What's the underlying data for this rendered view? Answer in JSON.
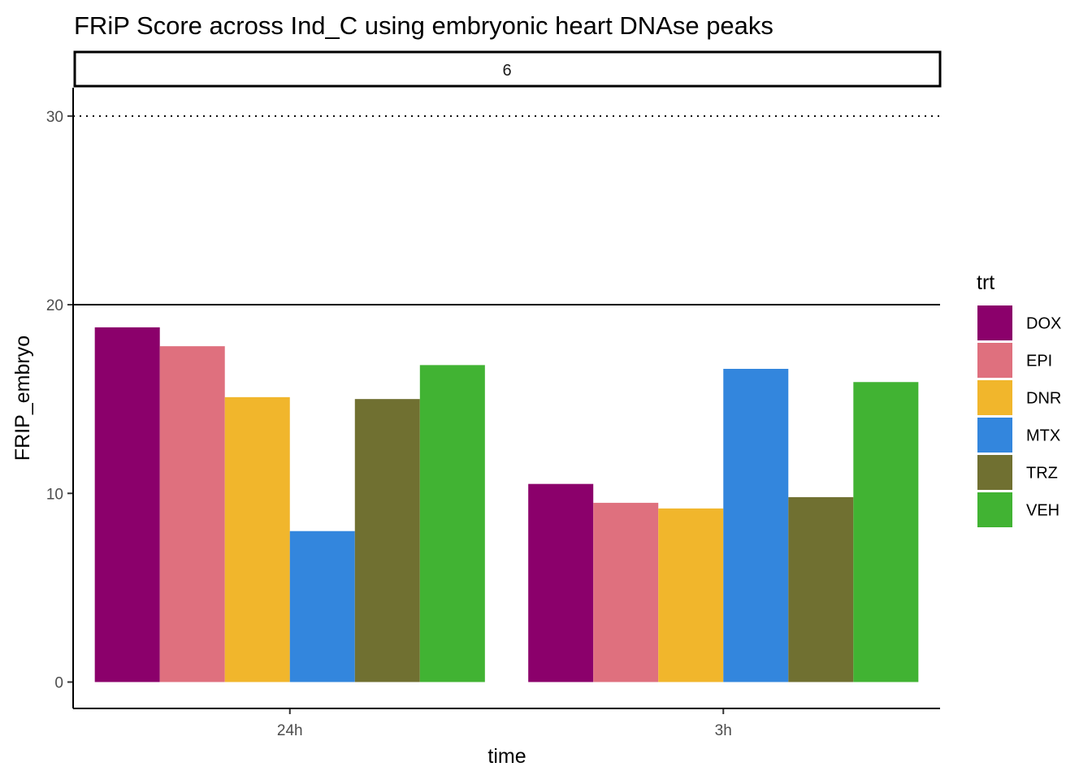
{
  "chart_data": {
    "type": "bar",
    "title": "FRiP Score across Ind_C using embryonic heart DNAse peaks",
    "facet_label": "6",
    "xlabel": "time",
    "ylabel": "FRIP_embryo",
    "categories": [
      "24h",
      "3h"
    ],
    "ylim": [
      -1.4,
      31.5
    ],
    "yticks": [
      0,
      10,
      20,
      30
    ],
    "grid": false,
    "legend": {
      "title": "trt",
      "position": "right"
    },
    "reference_lines": [
      {
        "y": 20,
        "style": "solid"
      },
      {
        "y": 30,
        "style": "dotted"
      }
    ],
    "series": [
      {
        "name": "DOX",
        "color": "#8B006B",
        "values": [
          18.8,
          10.5
        ]
      },
      {
        "name": "EPI",
        "color": "#DF707E",
        "values": [
          17.8,
          9.5
        ]
      },
      {
        "name": "DNR",
        "color": "#F1B62C",
        "values": [
          15.1,
          9.2
        ]
      },
      {
        "name": "MTX",
        "color": "#3386DD",
        "values": [
          8.0,
          16.6
        ]
      },
      {
        "name": "TRZ",
        "color": "#707031",
        "values": [
          15.0,
          9.8
        ]
      },
      {
        "name": "VEH",
        "color": "#41B333",
        "values": [
          16.8,
          15.9
        ]
      }
    ]
  }
}
